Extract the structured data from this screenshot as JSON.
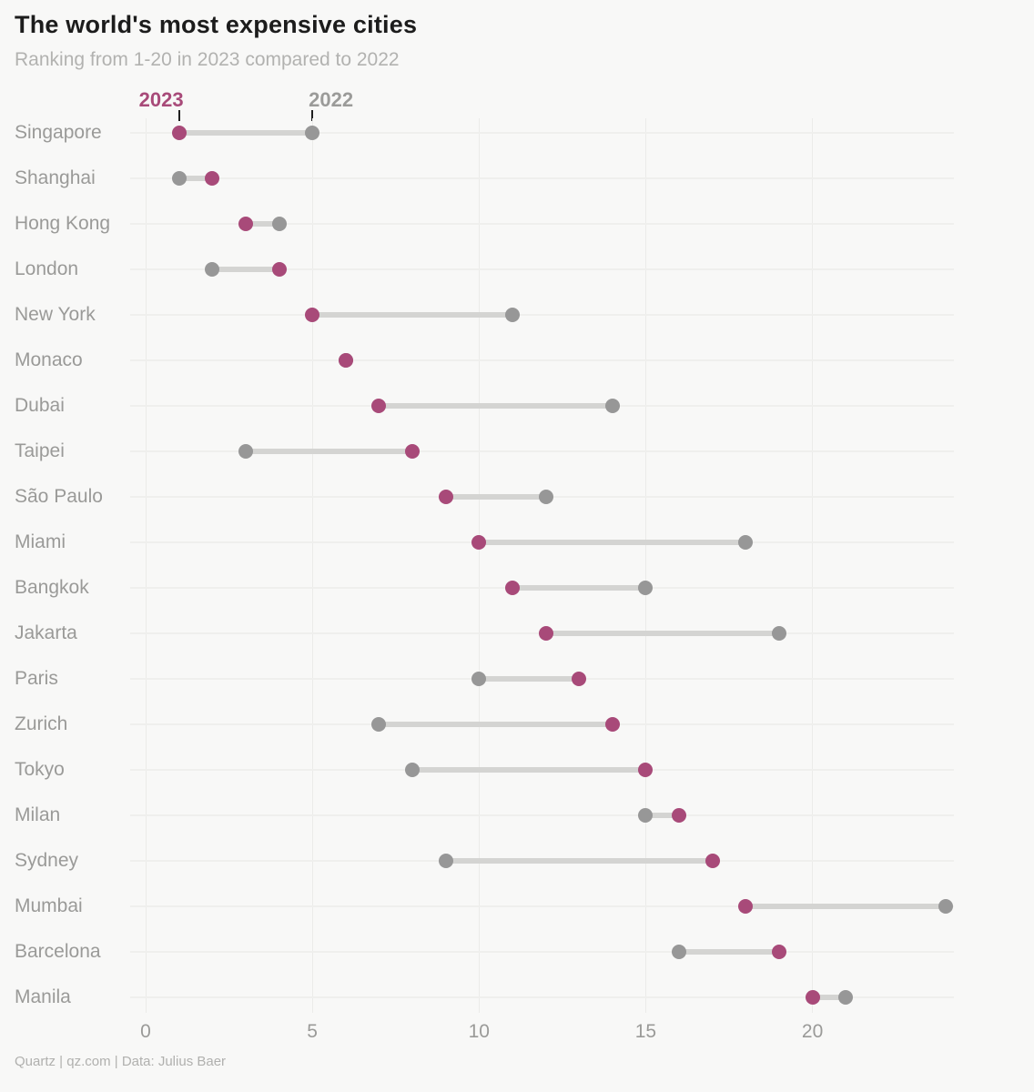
{
  "chart_data": {
    "type": "dumbbell",
    "title": "The world's most expensive cities",
    "subtitle": "Ranking from 1-20 in 2023 compared to 2022",
    "xlabel": "",
    "ylabel": "",
    "x_ticks": [
      0,
      5,
      10,
      15,
      20
    ],
    "xlim": [
      0,
      24.3
    ],
    "grid": true,
    "legend_position": "top",
    "categories": [
      "Singapore",
      "Shanghai",
      "Hong Kong",
      "London",
      "New York",
      "Monaco",
      "Dubai",
      "Taipei",
      "São Paulo",
      "Miami",
      "Bangkok",
      "Jakarta",
      "Paris",
      "Zurich",
      "Tokyo",
      "Milan",
      "Sydney",
      "Mumbai",
      "Barcelona",
      "Manila"
    ],
    "series": [
      {
        "name": "2023",
        "color": "#a84a79",
        "values": [
          1,
          2,
          3,
          4,
          5,
          6,
          7,
          8,
          9,
          10,
          11,
          12,
          13,
          14,
          15,
          16,
          17,
          18,
          19,
          20
        ]
      },
      {
        "name": "2022",
        "color": "#979797",
        "values": [
          5,
          1,
          4,
          2,
          11,
          6,
          14,
          3,
          12,
          18,
          15,
          19,
          10,
          7,
          8,
          15,
          9,
          24,
          16,
          21
        ]
      }
    ],
    "connector_color": "#d4d4d2",
    "gridline_color": "#ebebe9"
  },
  "footer": {
    "text": "Quartz | qz.com | Data: Julius Baer"
  }
}
